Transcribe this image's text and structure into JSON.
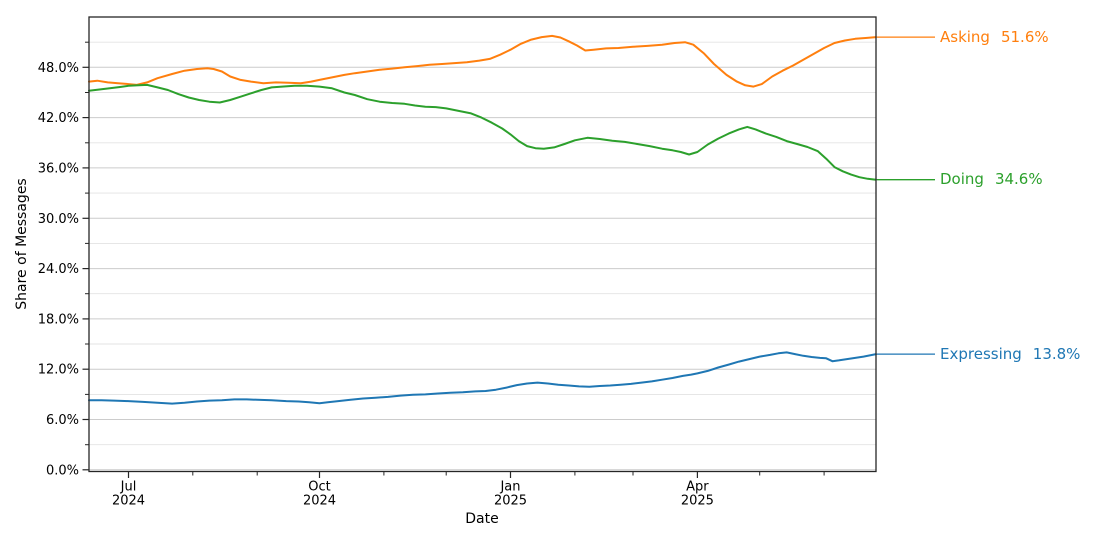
{
  "chart_data": {
    "type": "line",
    "title": "",
    "xlabel": "Date",
    "ylabel": "Share of Messages",
    "grid": "horizontal-major-and-minor",
    "legend_position": "right-edge-end-labels",
    "ylim": [
      -0.2,
      54.0
    ],
    "x_axis": {
      "start_date": "2024-06-12",
      "end_date": "2025-06-26",
      "span_days": 379,
      "major_ticks": [
        {
          "day": 19,
          "line1": "Jul",
          "line2": "2024"
        },
        {
          "day": 111,
          "line1": "Oct",
          "line2": "2024"
        },
        {
          "day": 203,
          "line1": "Jan",
          "line2": "2025"
        },
        {
          "day": 293,
          "line1": "Apr",
          "line2": "2025"
        }
      ],
      "minor_tick_days": [
        50,
        81,
        142,
        172,
        234,
        262,
        323,
        354
      ]
    },
    "y_axis": {
      "major_ticks": [
        {
          "value": 0,
          "label": "0.0%"
        },
        {
          "value": 6,
          "label": "6.0%"
        },
        {
          "value": 12,
          "label": "12.0%"
        },
        {
          "value": 18,
          "label": "18.0%"
        },
        {
          "value": 24,
          "label": "24.0%"
        },
        {
          "value": 30,
          "label": "30.0%"
        },
        {
          "value": 36,
          "label": "36.0%"
        },
        {
          "value": 42,
          "label": "42.0%"
        },
        {
          "value": 48,
          "label": "48.0%"
        }
      ],
      "minor_values": [
        3,
        9,
        15,
        21,
        27,
        33,
        39,
        45,
        51
      ]
    },
    "colors": {
      "grid_major": "#cccccc",
      "grid_minor": "#e3e3e3",
      "spine": "#262626",
      "text": "#000000"
    },
    "series": [
      {
        "name": "Asking",
        "value_label": "51.6%",
        "color": "#ff7f0e",
        "points": [
          [
            0,
            46.3
          ],
          [
            4,
            46.4
          ],
          [
            9,
            46.2
          ],
          [
            14,
            46.1
          ],
          [
            19,
            46.0
          ],
          [
            23,
            45.9
          ],
          [
            28,
            46.2
          ],
          [
            33,
            46.7
          ],
          [
            40,
            47.2
          ],
          [
            46,
            47.6
          ],
          [
            52,
            47.8
          ],
          [
            57,
            47.9
          ],
          [
            60,
            47.8
          ],
          [
            64,
            47.5
          ],
          [
            68,
            46.9
          ],
          [
            73,
            46.5
          ],
          [
            78,
            46.3
          ],
          [
            84,
            46.1
          ],
          [
            90,
            46.2
          ],
          [
            96,
            46.15
          ],
          [
            102,
            46.1
          ],
          [
            107,
            46.3
          ],
          [
            111,
            46.5
          ],
          [
            117,
            46.8
          ],
          [
            123,
            47.1
          ],
          [
            128,
            47.3
          ],
          [
            134,
            47.5
          ],
          [
            140,
            47.7
          ],
          [
            146,
            47.85
          ],
          [
            152,
            48.0
          ],
          [
            158,
            48.15
          ],
          [
            164,
            48.3
          ],
          [
            170,
            48.4
          ],
          [
            176,
            48.5
          ],
          [
            182,
            48.6
          ],
          [
            188,
            48.8
          ],
          [
            193,
            49.0
          ],
          [
            198,
            49.5
          ],
          [
            203,
            50.1
          ],
          [
            208,
            50.8
          ],
          [
            213,
            51.3
          ],
          [
            218,
            51.6
          ],
          [
            223,
            51.75
          ],
          [
            227,
            51.55
          ],
          [
            231,
            51.1
          ],
          [
            235,
            50.6
          ],
          [
            239,
            50.0
          ],
          [
            243,
            50.1
          ],
          [
            249,
            50.25
          ],
          [
            255,
            50.3
          ],
          [
            262,
            50.45
          ],
          [
            269,
            50.55
          ],
          [
            276,
            50.7
          ],
          [
            282,
            50.9
          ],
          [
            287,
            51.0
          ],
          [
            291,
            50.7
          ],
          [
            296,
            49.7
          ],
          [
            301,
            48.4
          ],
          [
            307,
            47.1
          ],
          [
            312,
            46.3
          ],
          [
            316,
            45.85
          ],
          [
            320,
            45.7
          ],
          [
            324,
            46.0
          ],
          [
            329,
            46.9
          ],
          [
            334,
            47.6
          ],
          [
            339,
            48.2
          ],
          [
            344,
            48.9
          ],
          [
            349,
            49.6
          ],
          [
            354,
            50.3
          ],
          [
            359,
            50.9
          ],
          [
            364,
            51.2
          ],
          [
            369,
            51.4
          ],
          [
            374,
            51.5
          ],
          [
            379,
            51.6
          ]
        ]
      },
      {
        "name": "Doing",
        "value_label": "34.6%",
        "color": "#2ca02c",
        "points": [
          [
            0,
            45.2
          ],
          [
            5,
            45.35
          ],
          [
            10,
            45.5
          ],
          [
            15,
            45.65
          ],
          [
            19,
            45.8
          ],
          [
            24,
            45.85
          ],
          [
            28,
            45.9
          ],
          [
            33,
            45.6
          ],
          [
            38,
            45.3
          ],
          [
            43,
            44.8
          ],
          [
            48,
            44.4
          ],
          [
            53,
            44.1
          ],
          [
            58,
            43.9
          ],
          [
            63,
            43.8
          ],
          [
            68,
            44.1
          ],
          [
            73,
            44.5
          ],
          [
            78,
            44.9
          ],
          [
            83,
            45.3
          ],
          [
            88,
            45.6
          ],
          [
            93,
            45.7
          ],
          [
            99,
            45.8
          ],
          [
            105,
            45.8
          ],
          [
            111,
            45.7
          ],
          [
            117,
            45.5
          ],
          [
            123,
            45.0
          ],
          [
            128,
            44.7
          ],
          [
            134,
            44.2
          ],
          [
            140,
            43.9
          ],
          [
            146,
            43.75
          ],
          [
            152,
            43.65
          ],
          [
            157,
            43.45
          ],
          [
            162,
            43.3
          ],
          [
            167,
            43.25
          ],
          [
            172,
            43.1
          ],
          [
            178,
            42.8
          ],
          [
            184,
            42.5
          ],
          [
            189,
            42.0
          ],
          [
            194,
            41.4
          ],
          [
            199,
            40.7
          ],
          [
            203,
            40.0
          ],
          [
            207,
            39.2
          ],
          [
            211,
            38.6
          ],
          [
            215,
            38.35
          ],
          [
            219,
            38.3
          ],
          [
            224,
            38.45
          ],
          [
            229,
            38.85
          ],
          [
            234,
            39.3
          ],
          [
            240,
            39.6
          ],
          [
            246,
            39.45
          ],
          [
            252,
            39.25
          ],
          [
            258,
            39.1
          ],
          [
            264,
            38.85
          ],
          [
            270,
            38.6
          ],
          [
            276,
            38.3
          ],
          [
            281,
            38.1
          ],
          [
            285,
            37.9
          ],
          [
            289,
            37.6
          ],
          [
            293,
            37.9
          ],
          [
            298,
            38.8
          ],
          [
            303,
            39.5
          ],
          [
            308,
            40.1
          ],
          [
            313,
            40.6
          ],
          [
            317,
            40.9
          ],
          [
            321,
            40.6
          ],
          [
            326,
            40.1
          ],
          [
            331,
            39.7
          ],
          [
            336,
            39.2
          ],
          [
            341,
            38.85
          ],
          [
            346,
            38.5
          ],
          [
            351,
            38.0
          ],
          [
            355,
            37.1
          ],
          [
            359,
            36.1
          ],
          [
            363,
            35.6
          ],
          [
            367,
            35.2
          ],
          [
            371,
            34.9
          ],
          [
            375,
            34.7
          ],
          [
            379,
            34.6
          ]
        ]
      },
      {
        "name": "Expressing",
        "value_label": "13.8%",
        "color": "#1f77b4",
        "points": [
          [
            0,
            8.3
          ],
          [
            6,
            8.3
          ],
          [
            12,
            8.25
          ],
          [
            19,
            8.2
          ],
          [
            26,
            8.1
          ],
          [
            33,
            8.0
          ],
          [
            40,
            7.9
          ],
          [
            46,
            8.0
          ],
          [
            52,
            8.15
          ],
          [
            58,
            8.25
          ],
          [
            64,
            8.3
          ],
          [
            70,
            8.4
          ],
          [
            76,
            8.4
          ],
          [
            81,
            8.35
          ],
          [
            88,
            8.3
          ],
          [
            95,
            8.2
          ],
          [
            101,
            8.15
          ],
          [
            106,
            8.05
          ],
          [
            111,
            7.95
          ],
          [
            115,
            8.05
          ],
          [
            120,
            8.2
          ],
          [
            126,
            8.35
          ],
          [
            132,
            8.5
          ],
          [
            138,
            8.6
          ],
          [
            144,
            8.7
          ],
          [
            150,
            8.85
          ],
          [
            156,
            8.95
          ],
          [
            162,
            9.0
          ],
          [
            168,
            9.1
          ],
          [
            174,
            9.2
          ],
          [
            180,
            9.25
          ],
          [
            186,
            9.35
          ],
          [
            191,
            9.4
          ],
          [
            196,
            9.55
          ],
          [
            201,
            9.8
          ],
          [
            206,
            10.1
          ],
          [
            211,
            10.3
          ],
          [
            216,
            10.4
          ],
          [
            221,
            10.3
          ],
          [
            226,
            10.15
          ],
          [
            231,
            10.05
          ],
          [
            236,
            9.95
          ],
          [
            241,
            9.9
          ],
          [
            246,
            10.0
          ],
          [
            251,
            10.05
          ],
          [
            256,
            10.15
          ],
          [
            261,
            10.25
          ],
          [
            266,
            10.4
          ],
          [
            271,
            10.55
          ],
          [
            276,
            10.75
          ],
          [
            281,
            10.95
          ],
          [
            286,
            11.2
          ],
          [
            290,
            11.35
          ],
          [
            293,
            11.5
          ],
          [
            298,
            11.8
          ],
          [
            303,
            12.2
          ],
          [
            308,
            12.55
          ],
          [
            313,
            12.9
          ],
          [
            318,
            13.2
          ],
          [
            323,
            13.5
          ],
          [
            328,
            13.7
          ],
          [
            332,
            13.9
          ],
          [
            336,
            14.0
          ],
          [
            340,
            13.8
          ],
          [
            344,
            13.6
          ],
          [
            348,
            13.45
          ],
          [
            352,
            13.35
          ],
          [
            355,
            13.3
          ],
          [
            358,
            12.95
          ],
          [
            361,
            13.05
          ],
          [
            365,
            13.2
          ],
          [
            369,
            13.35
          ],
          [
            373,
            13.5
          ],
          [
            376,
            13.65
          ],
          [
            379,
            13.8
          ]
        ]
      }
    ]
  }
}
